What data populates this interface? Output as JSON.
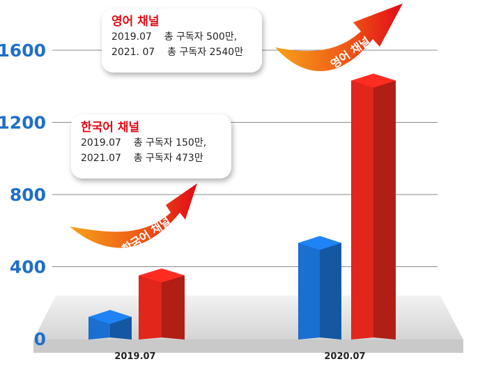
{
  "colors": {
    "series_blue": "#1a6fd0",
    "series_red": "#e1261c",
    "axis_tick_text": "#1f6fc7",
    "callout_title": "#e10b17",
    "arrow_gradient_start": "#f6a21a",
    "arrow_gradient_end": "#e10b17"
  },
  "callouts": {
    "english": {
      "title": "영어 채널",
      "line1": "2019.07    총 구독자 500만,",
      "line2": "2021. 07    총 구독자 2540만"
    },
    "korean": {
      "title": "한국어 채널",
      "line1": "2019.07    총 구독자 150만,",
      "line2": "2021.07    총 구독자 473만"
    }
  },
  "arrows": {
    "korean_label": "한국어 채널",
    "english_label": "영어 채널"
  },
  "chart_data": {
    "type": "bar",
    "style": "3d-bars-on-platform",
    "title": "",
    "xlabel": "",
    "ylabel": "",
    "categories": [
      "2019.07",
      "2020.07"
    ],
    "yticks": [
      "0",
      "400",
      "800",
      "1200",
      "1600"
    ],
    "ylim": [
      0,
      1600
    ],
    "grid": true,
    "series": [
      {
        "color": "#1a6fd0",
        "values": [
          160,
          570
        ]
      },
      {
        "color": "#e1261c",
        "values": [
          390,
          1470
        ]
      }
    ]
  }
}
